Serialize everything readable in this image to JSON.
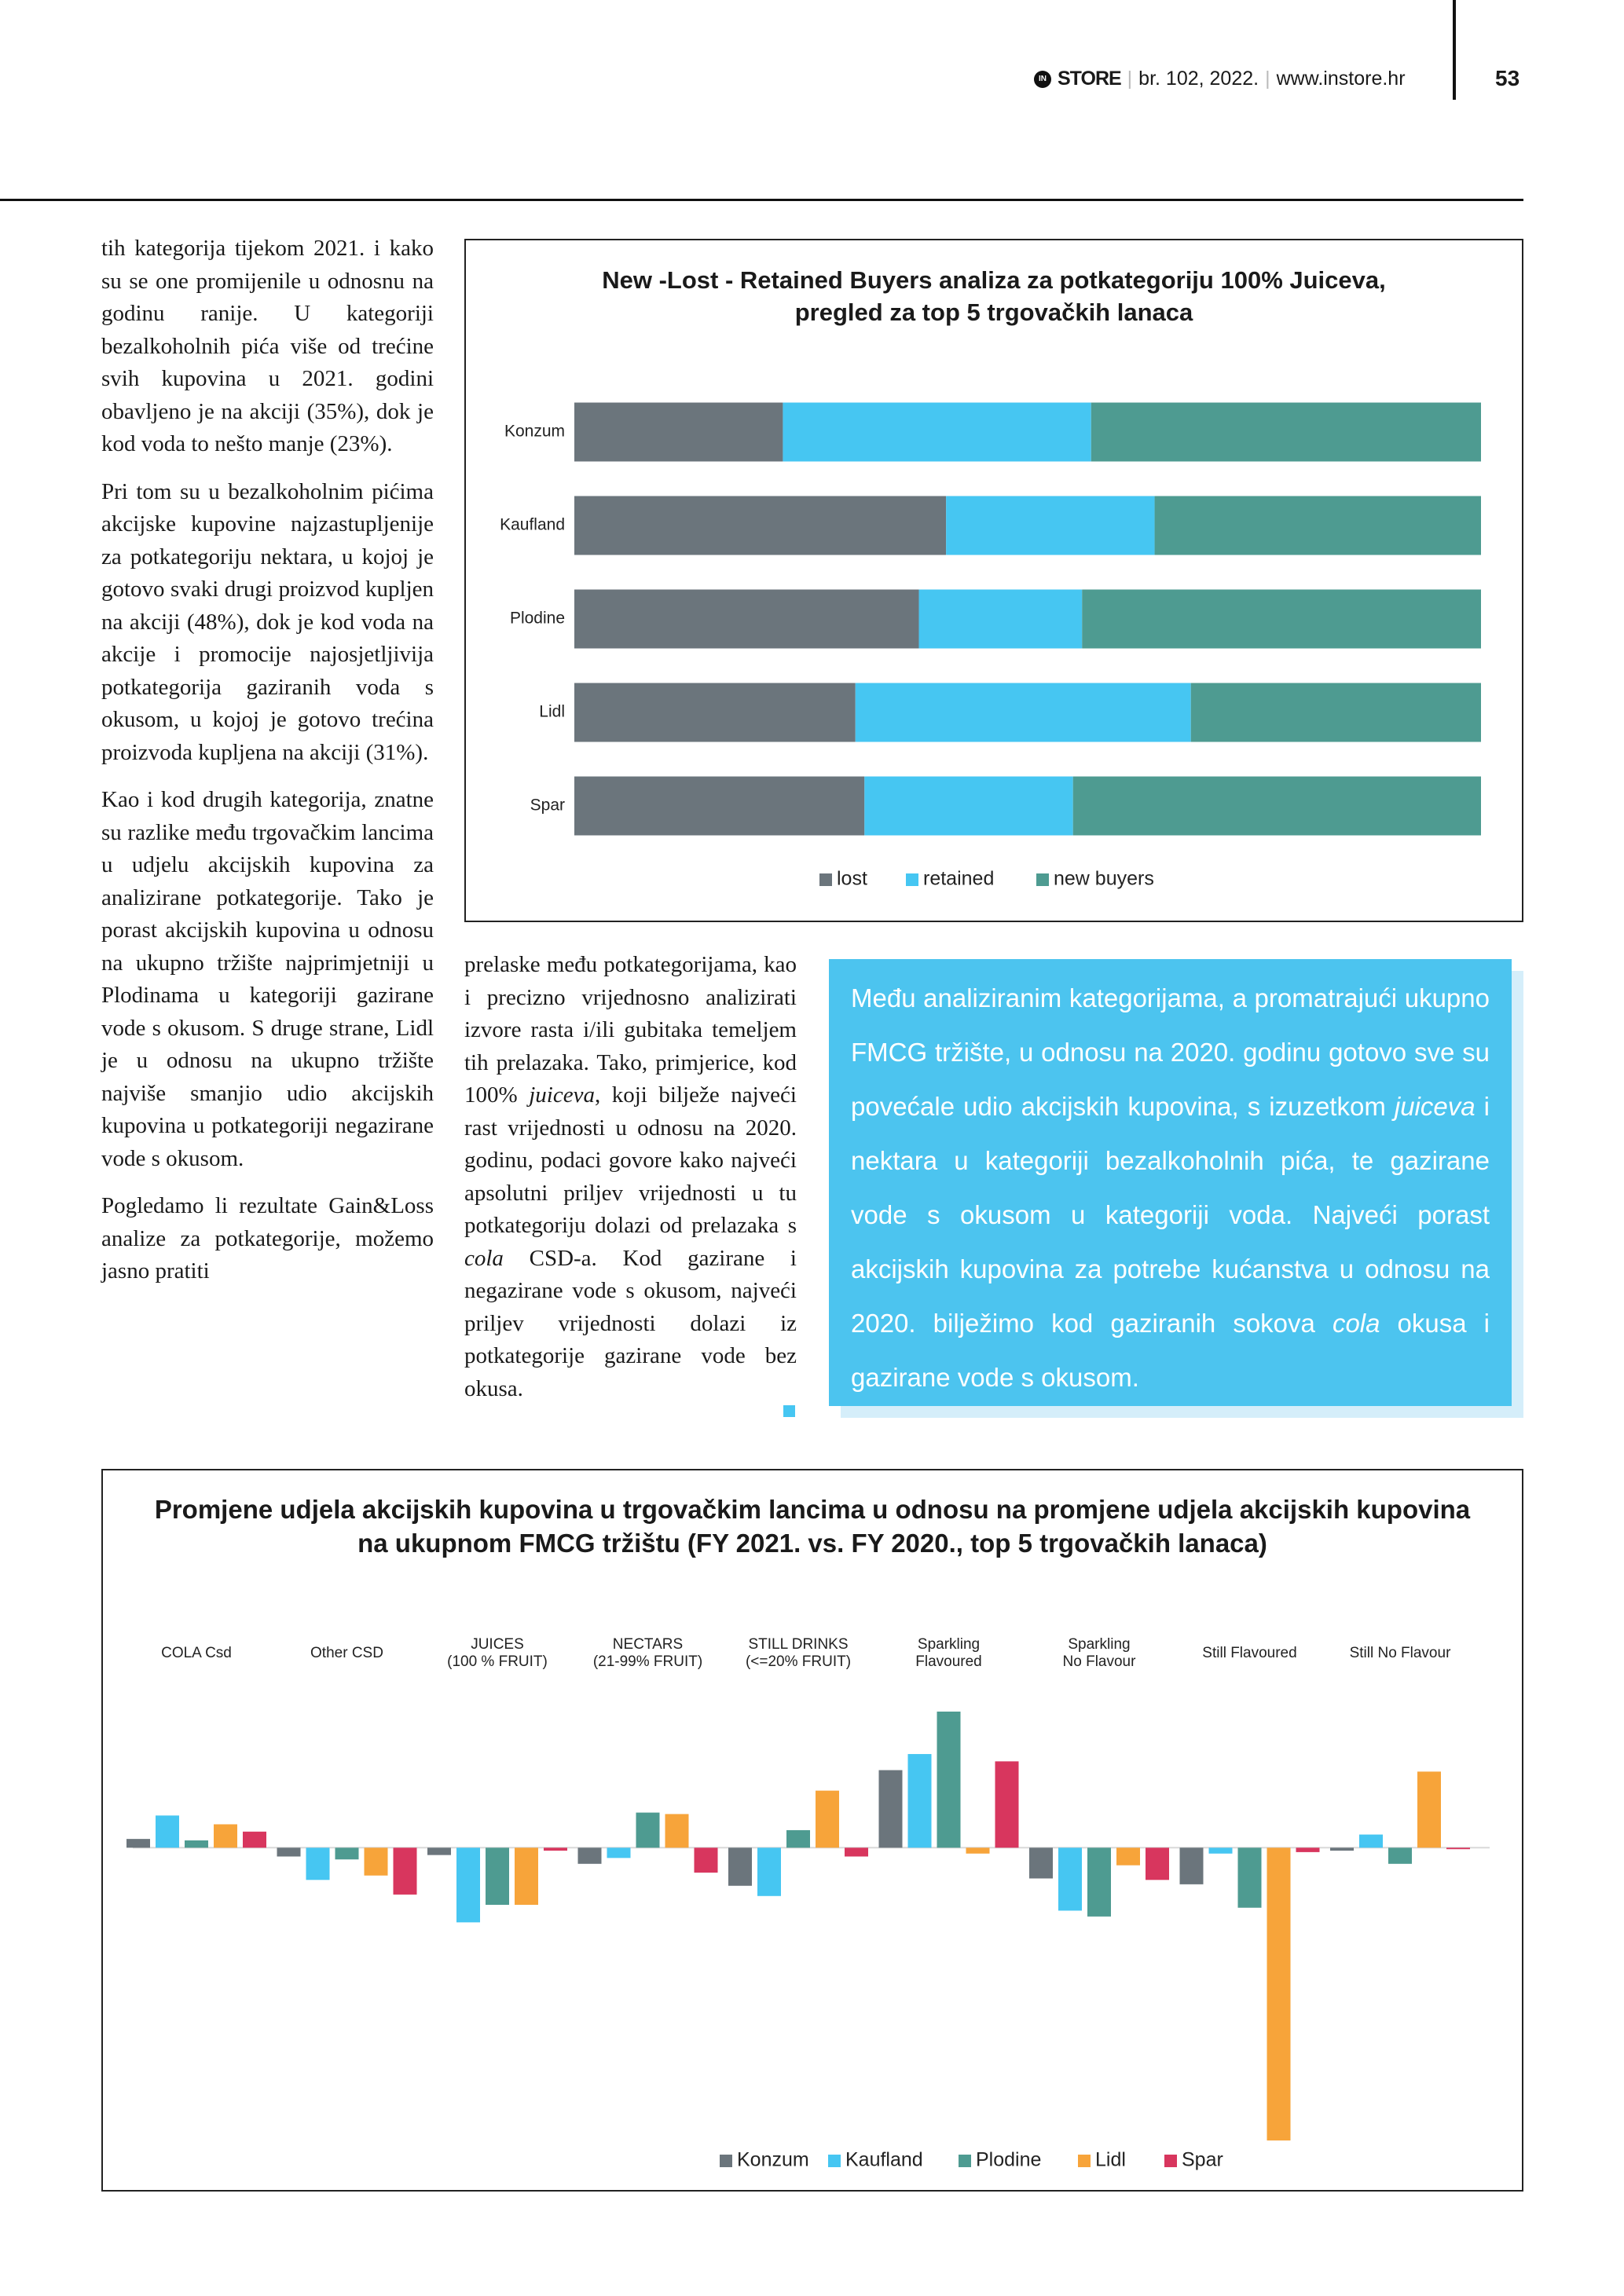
{
  "header": {
    "logo_mark": "IN",
    "logo": "STORE",
    "issue": "br. 102, 2022.",
    "website": "www.instore.hr",
    "page_number": "53"
  },
  "article": {
    "left_column": [
      [
        "tih kategorija tijekom 2021. i kako su se one promijenile u odnosnu na godinu ranije. U kategoriji bezalkoholnih pića više od trećine svih kupovina u 2021. godini obavljeno je na akciji (35%), dok je kod voda to nešto manje (23%)."
      ],
      [
        "Pri tom su u bezalkoholnim pićima akcijske kupovine najzastupljenije za potkategoriju nektara, u kojoj je gotovo svaki drugi proizvod kupljen na akciji (48%), dok je kod voda na akcije i promocije najosjetljivija potkategorija gaziranih voda s okusom, u kojoj je gotovo trećina proizvoda kupljena na akciji (31%)."
      ],
      [
        "Kao i kod drugih kategorija, znatne su razlike među trgovačkim lancima u udjelu akcijskih kupovina za analizirane potkategorije. Tako je porast akcijskih kupovina u odnosu na ukupno tržište najprimjetniji u Plodinama u kategoriji gazirane vode s okusom. S druge strane, Lidl je u odnosu na ukupno tržište najviše smanjio udio akcijskih kupovina u potkategoriji negazirane vode s okusom."
      ],
      [
        "Pogledamo li rezultate Gain&Loss analize za potkategorije, možemo jasno pratiti"
      ]
    ],
    "middle_column": [
      [
        "prelaske među potkategorijama, kao i precizno vrijednosno analizirati izvore rasta i/ili gubitaka temeljem tih prelazaka. Tako, primjerice, kod 100% ",
        "juiceva",
        ", koji bilježe najveći rast vrijednosti u odnosu na 2020. godinu, podaci govore kako najveći apsolutni priljev vrijednosti u tu potkategoriju dolazi od prelazaka s ",
        "cola",
        " CSD-a. Kod gazirane i negazirane vode s okusom, najveći priljev vrijednosti dolazi iz potkategorije gazirane vode bez okusa."
      ]
    ]
  },
  "callout": {
    "text": [
      "Među analiziranim kategorijama, a promatrajući ukupno FMCG tržište, u odnosu na 2020. godinu gotovo sve su povećale udio akcijskih kupovina, s izuzetkom ",
      "juiceva",
      " i nektara u kategoriji bezalkoholnih pića, te gazirane vode s okusom u kategoriji voda. Najveći porast akcijskih kupovina za potrebe kućanstva u odnosu na 2020. bilježimo kod gaziranih sokova ",
      "cola",
      " okusa i gazirane vode s okusom."
    ]
  },
  "chart_data": [
    {
      "type": "bar",
      "horizontal": true,
      "stacked": true,
      "title": "New -Lost - Retained Buyers analiza za potkategoriju 100% Juiceva,\npregled za top 5 trgovačkih lanaca",
      "categories": [
        "Konzum",
        "Kaufland",
        "Plodine",
        "Lidl",
        "Spar"
      ],
      "series": [
        {
          "name": "lost",
          "color": "#6b757c",
          "values": [
            23,
            41,
            38,
            31,
            32
          ]
        },
        {
          "name": "retained",
          "color": "#46c6f2",
          "values": [
            34,
            23,
            18,
            37,
            23
          ]
        },
        {
          "name": "new buyers",
          "color": "#4e9b91",
          "values": [
            43,
            36,
            44,
            32,
            45
          ]
        }
      ],
      "legend": "bottom"
    },
    {
      "type": "bar",
      "horizontal": false,
      "stacked": false,
      "title": "Promjene udjela akcijskih kupovina u trgovačkim lancima u odnosu na promjene udjela akcijskih kupovina\nna ukupnom FMCG tržištu (FY 2021. vs. FY 2020., top 5 trgovačkih lanaca)",
      "categories": [
        "COLA Csd",
        "Other CSD",
        "JUICES\n(100 % FRUIT)",
        "NECTARS\n(21-99% FRUIT)",
        "STILL DRINKS\n(<=20% FRUIT)",
        "Sparkling\nFlavoured",
        "Sparkling\nNo Flavour",
        "Still Flavoured",
        "Still No Flavour"
      ],
      "series": [
        {
          "name": "Konzum",
          "color": "#6b757c",
          "values": [
            0.3,
            -0.3,
            -0.25,
            -0.55,
            -1.3,
            2.65,
            -1.05,
            -1.25,
            -0.1
          ]
        },
        {
          "name": "Kaufland",
          "color": "#46c6f2",
          "values": [
            1.1,
            -1.1,
            -2.55,
            -0.35,
            -1.65,
            3.2,
            -2.15,
            -0.2,
            0.45
          ]
        },
        {
          "name": "Plodine",
          "color": "#4e9b91",
          "values": [
            0.25,
            -0.4,
            -1.95,
            1.2,
            0.6,
            4.65,
            -2.35,
            -2.05,
            -0.55
          ]
        },
        {
          "name": "Lidl",
          "color": "#f7a43a",
          "values": [
            0.8,
            -0.95,
            -1.95,
            1.15,
            1.95,
            -0.2,
            -0.6,
            -10,
            2.6
          ]
        },
        {
          "name": "Spar",
          "color": "#d8365e",
          "values": [
            0.55,
            -1.6,
            -0.1,
            -0.85,
            -0.3,
            2.95,
            -1.1,
            -0.15,
            -0.05
          ]
        }
      ],
      "legend": "bottom"
    }
  ]
}
